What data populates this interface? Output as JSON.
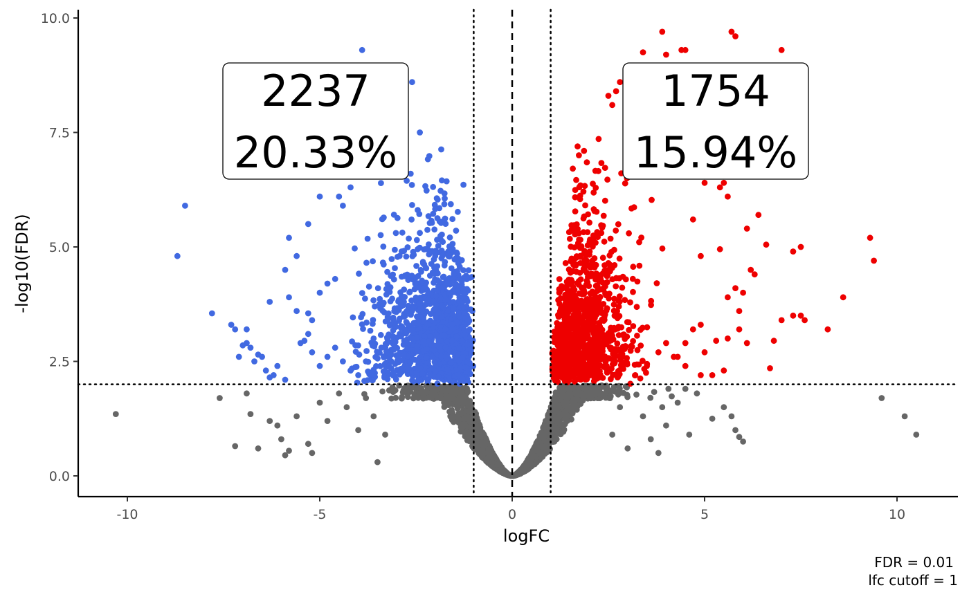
{
  "chart_data": {
    "type": "scatter",
    "title": "",
    "xlabel": "logFC",
    "ylabel": "-log10(FDR)",
    "xlim": [
      -11.3,
      11.3
    ],
    "ylim": [
      -0.5,
      10.15
    ],
    "x_ticks": [
      -10,
      -5,
      0,
      5,
      10
    ],
    "x_tick_labels": [
      "-10",
      "-5",
      "0",
      "5",
      "10"
    ],
    "y_ticks": [
      0,
      2.5,
      5,
      7.5,
      10
    ],
    "y_tick_labels": [
      "0.0",
      "2.5",
      "5.0",
      "7.5",
      "10.0"
    ],
    "grid": false,
    "legend": "none",
    "thresholds": {
      "fdr_line_y": 2,
      "logfc_lines_x": [
        -1,
        1
      ],
      "center_line_x": 0
    },
    "annotations": {
      "down": {
        "count": "2237",
        "percent": "20.33%"
      },
      "up": {
        "count": "1754",
        "percent": "15.94%"
      }
    },
    "caption": {
      "line1": "FDR =  0.01",
      "line2": "lfc cutoff =  1"
    },
    "colors": {
      "down": "#4169E1",
      "up": "#EE0000",
      "ns": "#666666"
    },
    "series": [
      {
        "group": "down",
        "note": "representative sample of visible outlying points",
        "points": [
          [
            -3.9,
            9.3
          ],
          [
            -2.6,
            8.6
          ],
          [
            -8.5,
            5.9
          ],
          [
            -8.7,
            4.8
          ],
          [
            -5.8,
            5.2
          ],
          [
            -5.6,
            4.8
          ],
          [
            -5.3,
            5.5
          ],
          [
            -5.0,
            6.1
          ],
          [
            -4.5,
            6.1
          ],
          [
            -4.4,
            5.9
          ],
          [
            -4.2,
            6.3
          ],
          [
            -4.0,
            6.6
          ],
          [
            -3.0,
            7.5
          ],
          [
            -2.4,
            7.5
          ],
          [
            -7.8,
            3.55
          ],
          [
            -7.3,
            3.3
          ],
          [
            -7.2,
            3.2
          ],
          [
            -6.9,
            3.2
          ],
          [
            -6.3,
            3.8
          ],
          [
            -5.9,
            4.5
          ],
          [
            -5.8,
            3.9
          ],
          [
            -5.6,
            3.6
          ],
          [
            -5.3,
            3.55
          ],
          [
            -5.2,
            3.4
          ],
          [
            -5.0,
            4.0
          ],
          [
            -4.8,
            4.2
          ],
          [
            -4.6,
            4.3
          ],
          [
            -7.1,
            2.6
          ],
          [
            -7.0,
            2.85
          ],
          [
            -6.9,
            2.9
          ],
          [
            -6.8,
            2.8
          ],
          [
            -6.7,
            2.5
          ],
          [
            -6.6,
            2.65
          ],
          [
            -6.5,
            2.6
          ],
          [
            -6.4,
            2.3
          ],
          [
            -6.3,
            2.15
          ],
          [
            -6.2,
            2.2
          ],
          [
            -6.1,
            2.4
          ],
          [
            -5.9,
            2.1
          ],
          [
            -5.5,
            2.9
          ],
          [
            -5.4,
            2.95
          ],
          [
            -5.3,
            3.1
          ],
          [
            -5.2,
            2.7
          ],
          [
            -5.0,
            2.4
          ],
          [
            -4.8,
            2.6
          ],
          [
            -4.6,
            2.8
          ],
          [
            -4.4,
            2.5
          ],
          [
            -4.2,
            2.3
          ],
          [
            -4.0,
            2.2
          ],
          [
            -3.8,
            2.5
          ],
          [
            -3.6,
            3.0
          ],
          [
            -3.4,
            2.8
          ],
          [
            -3.2,
            2.4
          ]
        ]
      },
      {
        "group": "up",
        "note": "representative sample of visible outlying points",
        "points": [
          [
            3.9,
            9.7
          ],
          [
            5.7,
            9.7
          ],
          [
            5.8,
            9.6
          ],
          [
            7.0,
            9.3
          ],
          [
            4.4,
            9.3
          ],
          [
            4.5,
            9.3
          ],
          [
            3.4,
            9.25
          ],
          [
            4.0,
            9.2
          ],
          [
            2.8,
            8.6
          ],
          [
            2.7,
            8.4
          ],
          [
            2.5,
            8.3
          ],
          [
            2.6,
            8.1
          ],
          [
            9.3,
            5.2
          ],
          [
            9.4,
            4.7
          ],
          [
            7.5,
            5.0
          ],
          [
            7.3,
            4.9
          ],
          [
            6.6,
            5.05
          ],
          [
            6.4,
            5.7
          ],
          [
            6.1,
            5.4
          ],
          [
            5.5,
            6.4
          ],
          [
            5.4,
            6.3
          ],
          [
            5.0,
            6.4
          ],
          [
            5.6,
            6.1
          ],
          [
            4.7,
            5.6
          ],
          [
            5.4,
            4.95
          ],
          [
            4.9,
            4.8
          ],
          [
            8.6,
            3.9
          ],
          [
            8.2,
            3.2
          ],
          [
            7.6,
            3.4
          ],
          [
            7.5,
            3.5
          ],
          [
            7.3,
            3.5
          ],
          [
            7.0,
            3.4
          ],
          [
            6.8,
            2.95
          ],
          [
            6.1,
            2.9
          ],
          [
            5.9,
            3.2
          ],
          [
            5.6,
            3.0
          ],
          [
            5.3,
            2.95
          ],
          [
            5.0,
            2.7
          ],
          [
            4.9,
            3.3
          ],
          [
            4.7,
            3.2
          ],
          [
            4.5,
            2.9
          ],
          [
            4.3,
            2.6
          ],
          [
            4.0,
            2.9
          ],
          [
            3.8,
            2.7
          ],
          [
            3.5,
            2.4
          ],
          [
            3.2,
            2.2
          ],
          [
            6.7,
            2.35
          ],
          [
            5.5,
            2.3
          ],
          [
            5.2,
            2.2
          ],
          [
            4.9,
            2.2
          ],
          [
            4.5,
            2.4
          ],
          [
            4.2,
            2.6
          ],
          [
            6.0,
            4.0
          ],
          [
            5.8,
            4.1
          ],
          [
            5.6,
            3.9
          ],
          [
            6.3,
            4.4
          ],
          [
            5.9,
            3.6
          ],
          [
            6.2,
            4.5
          ]
        ]
      },
      {
        "group": "ns",
        "note": "representative sample of visible outlying points",
        "points": [
          [
            -10.3,
            1.35
          ],
          [
            -7.6,
            1.7
          ],
          [
            -7.2,
            0.65
          ],
          [
            -6.9,
            1.8
          ],
          [
            -6.8,
            1.35
          ],
          [
            -6.6,
            0.6
          ],
          [
            -6.3,
            1.2
          ],
          [
            -6.1,
            1.1
          ],
          [
            -6.0,
            0.8
          ],
          [
            -5.9,
            0.45
          ],
          [
            -5.8,
            0.55
          ],
          [
            -5.6,
            1.3
          ],
          [
            -5.3,
            0.7
          ],
          [
            -5.2,
            0.5
          ],
          [
            -5.0,
            1.6
          ],
          [
            -4.8,
            1.2
          ],
          [
            -4.5,
            1.8
          ],
          [
            -4.3,
            1.5
          ],
          [
            -4.0,
            1.0
          ],
          [
            -3.8,
            1.7
          ],
          [
            -3.6,
            1.3
          ],
          [
            -3.5,
            0.3
          ],
          [
            -3.3,
            0.9
          ],
          [
            9.6,
            1.7
          ],
          [
            10.2,
            1.3
          ],
          [
            10.5,
            0.9
          ],
          [
            5.9,
            0.85
          ],
          [
            6.0,
            0.75
          ],
          [
            5.7,
            1.3
          ],
          [
            5.8,
            1.0
          ],
          [
            5.5,
            1.5
          ],
          [
            5.2,
            1.25
          ],
          [
            4.5,
            1.9
          ],
          [
            4.3,
            1.6
          ],
          [
            4.0,
            1.1
          ],
          [
            3.8,
            0.5
          ],
          [
            3.6,
            0.8
          ],
          [
            3.4,
            1.3
          ],
          [
            3.0,
            0.6
          ],
          [
            2.8,
            1.5
          ],
          [
            2.6,
            0.9
          ],
          [
            4.6,
            0.9
          ],
          [
            3.9,
            1.5
          ],
          [
            4.8,
            1.8
          ]
        ]
      }
    ]
  }
}
